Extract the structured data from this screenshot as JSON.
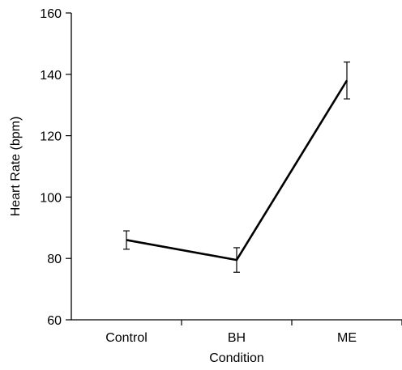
{
  "chart_data": {
    "type": "line",
    "xlabel": "Condition",
    "ylabel": "Heart Rate (bpm)",
    "categories": [
      "Control",
      "BH",
      "ME"
    ],
    "ylim": [
      60,
      160
    ],
    "yticks": [
      60,
      80,
      100,
      120,
      140,
      160
    ],
    "grid": false,
    "series": [
      {
        "values": [
          86,
          79.5,
          138
        ],
        "error_low": [
          83,
          75.5,
          132
        ],
        "error_high": [
          89,
          83.5,
          144
        ]
      }
    ]
  }
}
